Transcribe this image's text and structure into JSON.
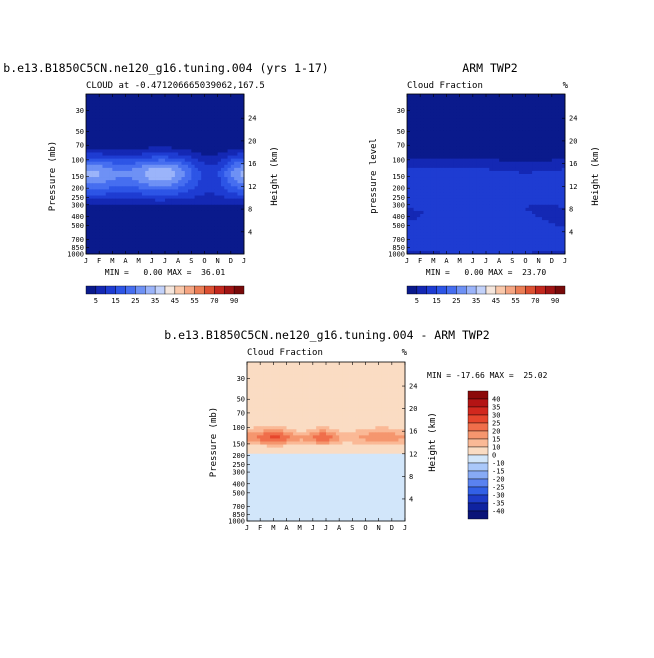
{
  "chart_data": [
    {
      "type": "heatmap",
      "title": "b.e13.B1850C5CN.ne120_g16.tuning.004 (yrs 1-17)",
      "subtitle_left": "CLOUD at -0.471206665039062,167.5",
      "subtitle_right": "",
      "ylabel_left": "Pressure (mb)",
      "ylabel_right": "Height (km)",
      "xticks": [
        "J",
        "F",
        "M",
        "A",
        "M",
        "J",
        "J",
        "A",
        "S",
        "O",
        "N",
        "D",
        "J"
      ],
      "pressure_ticks": [
        "30",
        "50",
        "70",
        "100",
        "150",
        "200",
        "250",
        "300",
        "400",
        "500",
        "700",
        "850",
        "1000"
      ],
      "pressure_values": [
        30,
        50,
        70,
        100,
        150,
        200,
        250,
        300,
        400,
        500,
        700,
        850,
        1000
      ],
      "height_ticks": [
        "24",
        "20",
        "16",
        "12",
        "8",
        "4"
      ],
      "height_values": [
        24,
        20,
        16,
        12,
        8,
        4
      ],
      "stats_text": "MIN =   0.00 MAX =  36.01",
      "field": "model",
      "range": [
        0,
        36.01
      ]
    },
    {
      "type": "heatmap",
      "title": "ARM TWP2",
      "subtitle_left": "Cloud Fraction",
      "subtitle_right": "%",
      "ylabel_left": "pressure level",
      "ylabel_right": "Height (km)",
      "xticks": [
        "J",
        "F",
        "M",
        "A",
        "M",
        "J",
        "J",
        "A",
        "S",
        "O",
        "N",
        "D",
        "J"
      ],
      "pressure_ticks": [
        "30",
        "50",
        "70",
        "100",
        "150",
        "200",
        "250",
        "300",
        "400",
        "500",
        "700",
        "850",
        "1000"
      ],
      "pressure_values": [
        30,
        50,
        70,
        100,
        150,
        200,
        250,
        300,
        400,
        500,
        700,
        850,
        1000
      ],
      "height_ticks": [
        "24",
        "20",
        "16",
        "12",
        "8",
        "4"
      ],
      "height_values": [
        24,
        20,
        16,
        12,
        8,
        4
      ],
      "stats_text": "MIN =   0.00 MAX =  23.70",
      "field": "obs",
      "range": [
        0,
        23.7
      ]
    },
    {
      "type": "heatmap",
      "title": "b.e13.B1850C5CN.ne120_g16.tuning.004 - ARM TWP2",
      "subtitle_left": "Cloud Fraction",
      "subtitle_right": "%",
      "ylabel_left": "Pressure (mb)",
      "ylabel_right": "Height (km)",
      "xticks": [
        "J",
        "F",
        "M",
        "A",
        "M",
        "J",
        "J",
        "A",
        "S",
        "O",
        "N",
        "D",
        "J"
      ],
      "pressure_ticks": [
        "30",
        "50",
        "70",
        "100",
        "150",
        "200",
        "250",
        "300",
        "400",
        "500",
        "700",
        "850",
        "1000"
      ],
      "pressure_values": [
        30,
        50,
        70,
        100,
        150,
        200,
        250,
        300,
        400,
        500,
        700,
        850,
        1000
      ],
      "height_ticks": [
        "24",
        "20",
        "16",
        "12",
        "8",
        "4"
      ],
      "height_values": [
        24,
        20,
        16,
        12,
        8,
        4
      ],
      "stats_text": "MIN = -17.66 MAX =  25.02",
      "field": "diff",
      "range": [
        -17.66,
        25.02
      ]
    }
  ],
  "colorbar_abs": {
    "labels": [
      "5",
      "15",
      "25",
      "35",
      "45",
      "55",
      "70",
      "90"
    ],
    "levels": [
      5,
      10,
      15,
      20,
      25,
      30,
      35,
      40,
      45,
      50,
      55,
      60,
      70,
      80,
      90
    ],
    "colors": [
      "#0a1a8c",
      "#1428b4",
      "#1e3cd2",
      "#2d55e6",
      "#466ef0",
      "#6e91f5",
      "#9bb4fa",
      "#c3d2fa",
      "#f5e6dc",
      "#fac8aa",
      "#f5a582",
      "#eb7d55",
      "#dc5032",
      "#c3281e",
      "#a01414",
      "#780a0a"
    ]
  },
  "colorbar_diff": {
    "labels": [
      "40",
      "35",
      "30",
      "25",
      "20",
      "15",
      "10",
      "0",
      "-10",
      "-15",
      "-20",
      "-25",
      "-30",
      "-35",
      "-40"
    ],
    "levels": [
      40,
      35,
      30,
      25,
      20,
      15,
      10,
      0,
      -10,
      -15,
      -20,
      -25,
      -30,
      -35,
      -40
    ],
    "colors": [
      "#8c0a0a",
      "#b41414",
      "#d2281e",
      "#e6462d",
      "#f06e4b",
      "#f5966e",
      "#fab996",
      "#fadcc3",
      "#d2e6fa",
      "#aac8fa",
      "#87aaf5",
      "#5a82f0",
      "#3260e6",
      "#1e3cc8",
      "#0f23a0",
      "#0a1478"
    ]
  }
}
